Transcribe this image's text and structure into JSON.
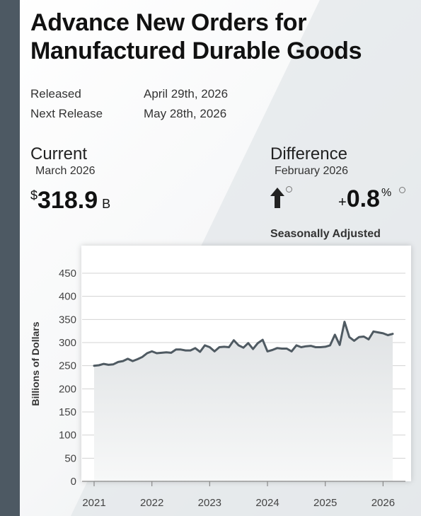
{
  "header": {
    "title": "Advance New Orders for Manufactured Durable Goods"
  },
  "release": {
    "released_label": "Released",
    "released_value": "April 29th, 2026",
    "next_label": "Next Release",
    "next_value": "May 28th, 2026"
  },
  "current": {
    "heading": "Current",
    "period": "March 2026",
    "currency": "$",
    "value": "318.9",
    "unit": "B"
  },
  "difference": {
    "heading": "Difference",
    "period": "February 2026",
    "sign": "+",
    "value": "0.8",
    "unit": "%",
    "direction": "up-arrow-icon"
  },
  "note": "Seasonally Adjusted",
  "colors": {
    "sidebar": "#4d5963",
    "line": "#4f5a62",
    "area_top": "#dfe2e4",
    "area_bottom": "#f7f8f8",
    "grid": "#d3d3d3"
  },
  "chart_data": {
    "type": "area",
    "title": "",
    "xlabel": "",
    "ylabel": "Billions of Dollars",
    "ylim": [
      0,
      450
    ],
    "yticks": [
      0,
      50,
      100,
      150,
      200,
      250,
      300,
      350,
      400,
      450
    ],
    "xticks": [
      "2021",
      "2022",
      "2023",
      "2024",
      "2025",
      "2026"
    ],
    "xlim": [
      "2021-01",
      "2026-03"
    ],
    "grid": true,
    "series": [
      {
        "x": [
          "2021-01",
          "2021-02",
          "2021-03",
          "2021-04",
          "2021-05",
          "2021-06",
          "2021-07",
          "2021-08",
          "2021-09",
          "2021-10",
          "2021-11",
          "2021-12",
          "2022-01",
          "2022-02",
          "2022-03",
          "2022-04",
          "2022-05",
          "2022-06",
          "2022-07",
          "2022-08",
          "2022-09",
          "2022-10",
          "2022-11",
          "2022-12",
          "2023-01",
          "2023-02",
          "2023-03",
          "2023-04",
          "2023-05",
          "2023-06",
          "2023-07",
          "2023-08",
          "2023-09",
          "2023-10",
          "2023-11",
          "2023-12",
          "2024-01",
          "2024-02",
          "2024-03",
          "2024-04",
          "2024-05",
          "2024-06",
          "2024-07",
          "2024-08",
          "2024-09",
          "2024-10",
          "2024-11",
          "2024-12",
          "2025-01",
          "2025-02",
          "2025-03",
          "2025-04",
          "2025-05",
          "2025-06",
          "2025-07",
          "2025-08",
          "2025-09",
          "2025-10",
          "2025-11",
          "2025-12",
          "2026-01",
          "2026-02",
          "2026-03"
        ],
        "values": [
          250,
          251,
          254,
          252,
          253,
          258,
          260,
          265,
          260,
          264,
          269,
          277,
          281,
          277,
          278,
          279,
          278,
          285,
          285,
          283,
          283,
          288,
          280,
          294,
          290,
          281,
          290,
          291,
          290,
          305,
          294,
          289,
          299,
          286,
          299,
          306,
          281,
          284,
          288,
          287,
          287,
          281,
          294,
          290,
          292,
          293,
          290,
          290,
          291,
          294,
          317,
          295,
          345,
          312,
          304,
          312,
          313,
          307,
          324,
          322,
          320,
          316,
          318.9
        ]
      }
    ]
  }
}
